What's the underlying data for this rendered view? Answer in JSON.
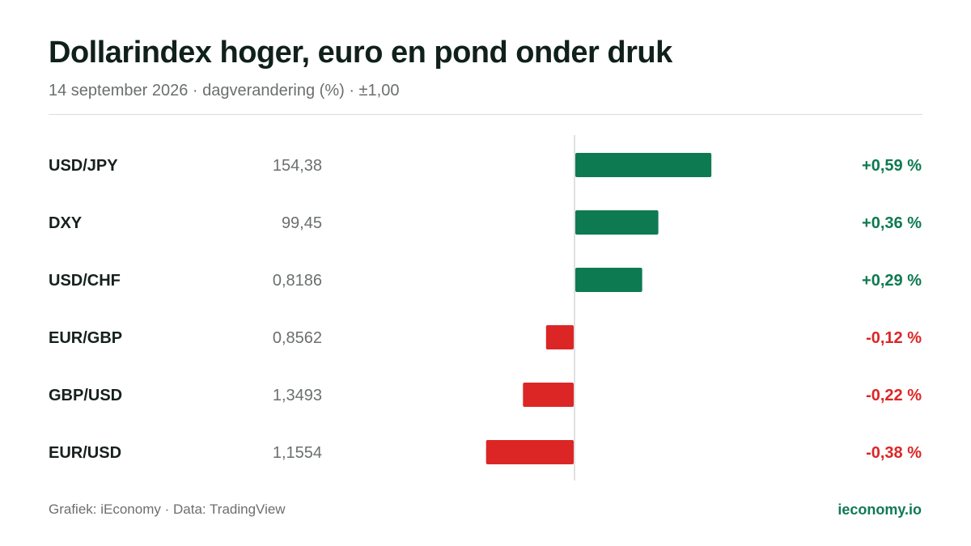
{
  "title": "Dollarindex hoger, euro en pond onder druk",
  "subtitle": "14 september 2026 · dagverandering (%) · ±1,00",
  "footer": {
    "source": "Grafiek: iEconomy · Data: TradingView",
    "brand": "ieconomy.io"
  },
  "colors": {
    "positive": "#0e7a51",
    "negative": "#dc2626",
    "axis": "#d6d6d6",
    "label": "#16211c",
    "value": "#6b6f6d"
  },
  "chart_data": {
    "type": "bar",
    "orientation": "horizontal",
    "unit": "%",
    "xlim": [
      -1,
      1
    ],
    "grid": false,
    "rows": [
      {
        "label": "USD/JPY",
        "price": "154,38",
        "value": 0.59,
        "value_label": "+0,59 %"
      },
      {
        "label": "DXY",
        "price": "99,45",
        "value": 0.36,
        "value_label": "+0,36 %"
      },
      {
        "label": "USD/CHF",
        "price": "0,8186",
        "value": 0.29,
        "value_label": "+0,29 %"
      },
      {
        "label": "EUR/GBP",
        "price": "0,8562",
        "value": -0.12,
        "value_label": "-0,12 %"
      },
      {
        "label": "GBP/USD",
        "price": "1,3493",
        "value": -0.22,
        "value_label": "-0,22 %"
      },
      {
        "label": "EUR/USD",
        "price": "1,1554",
        "value": -0.38,
        "value_label": "-0,38 %"
      }
    ]
  }
}
